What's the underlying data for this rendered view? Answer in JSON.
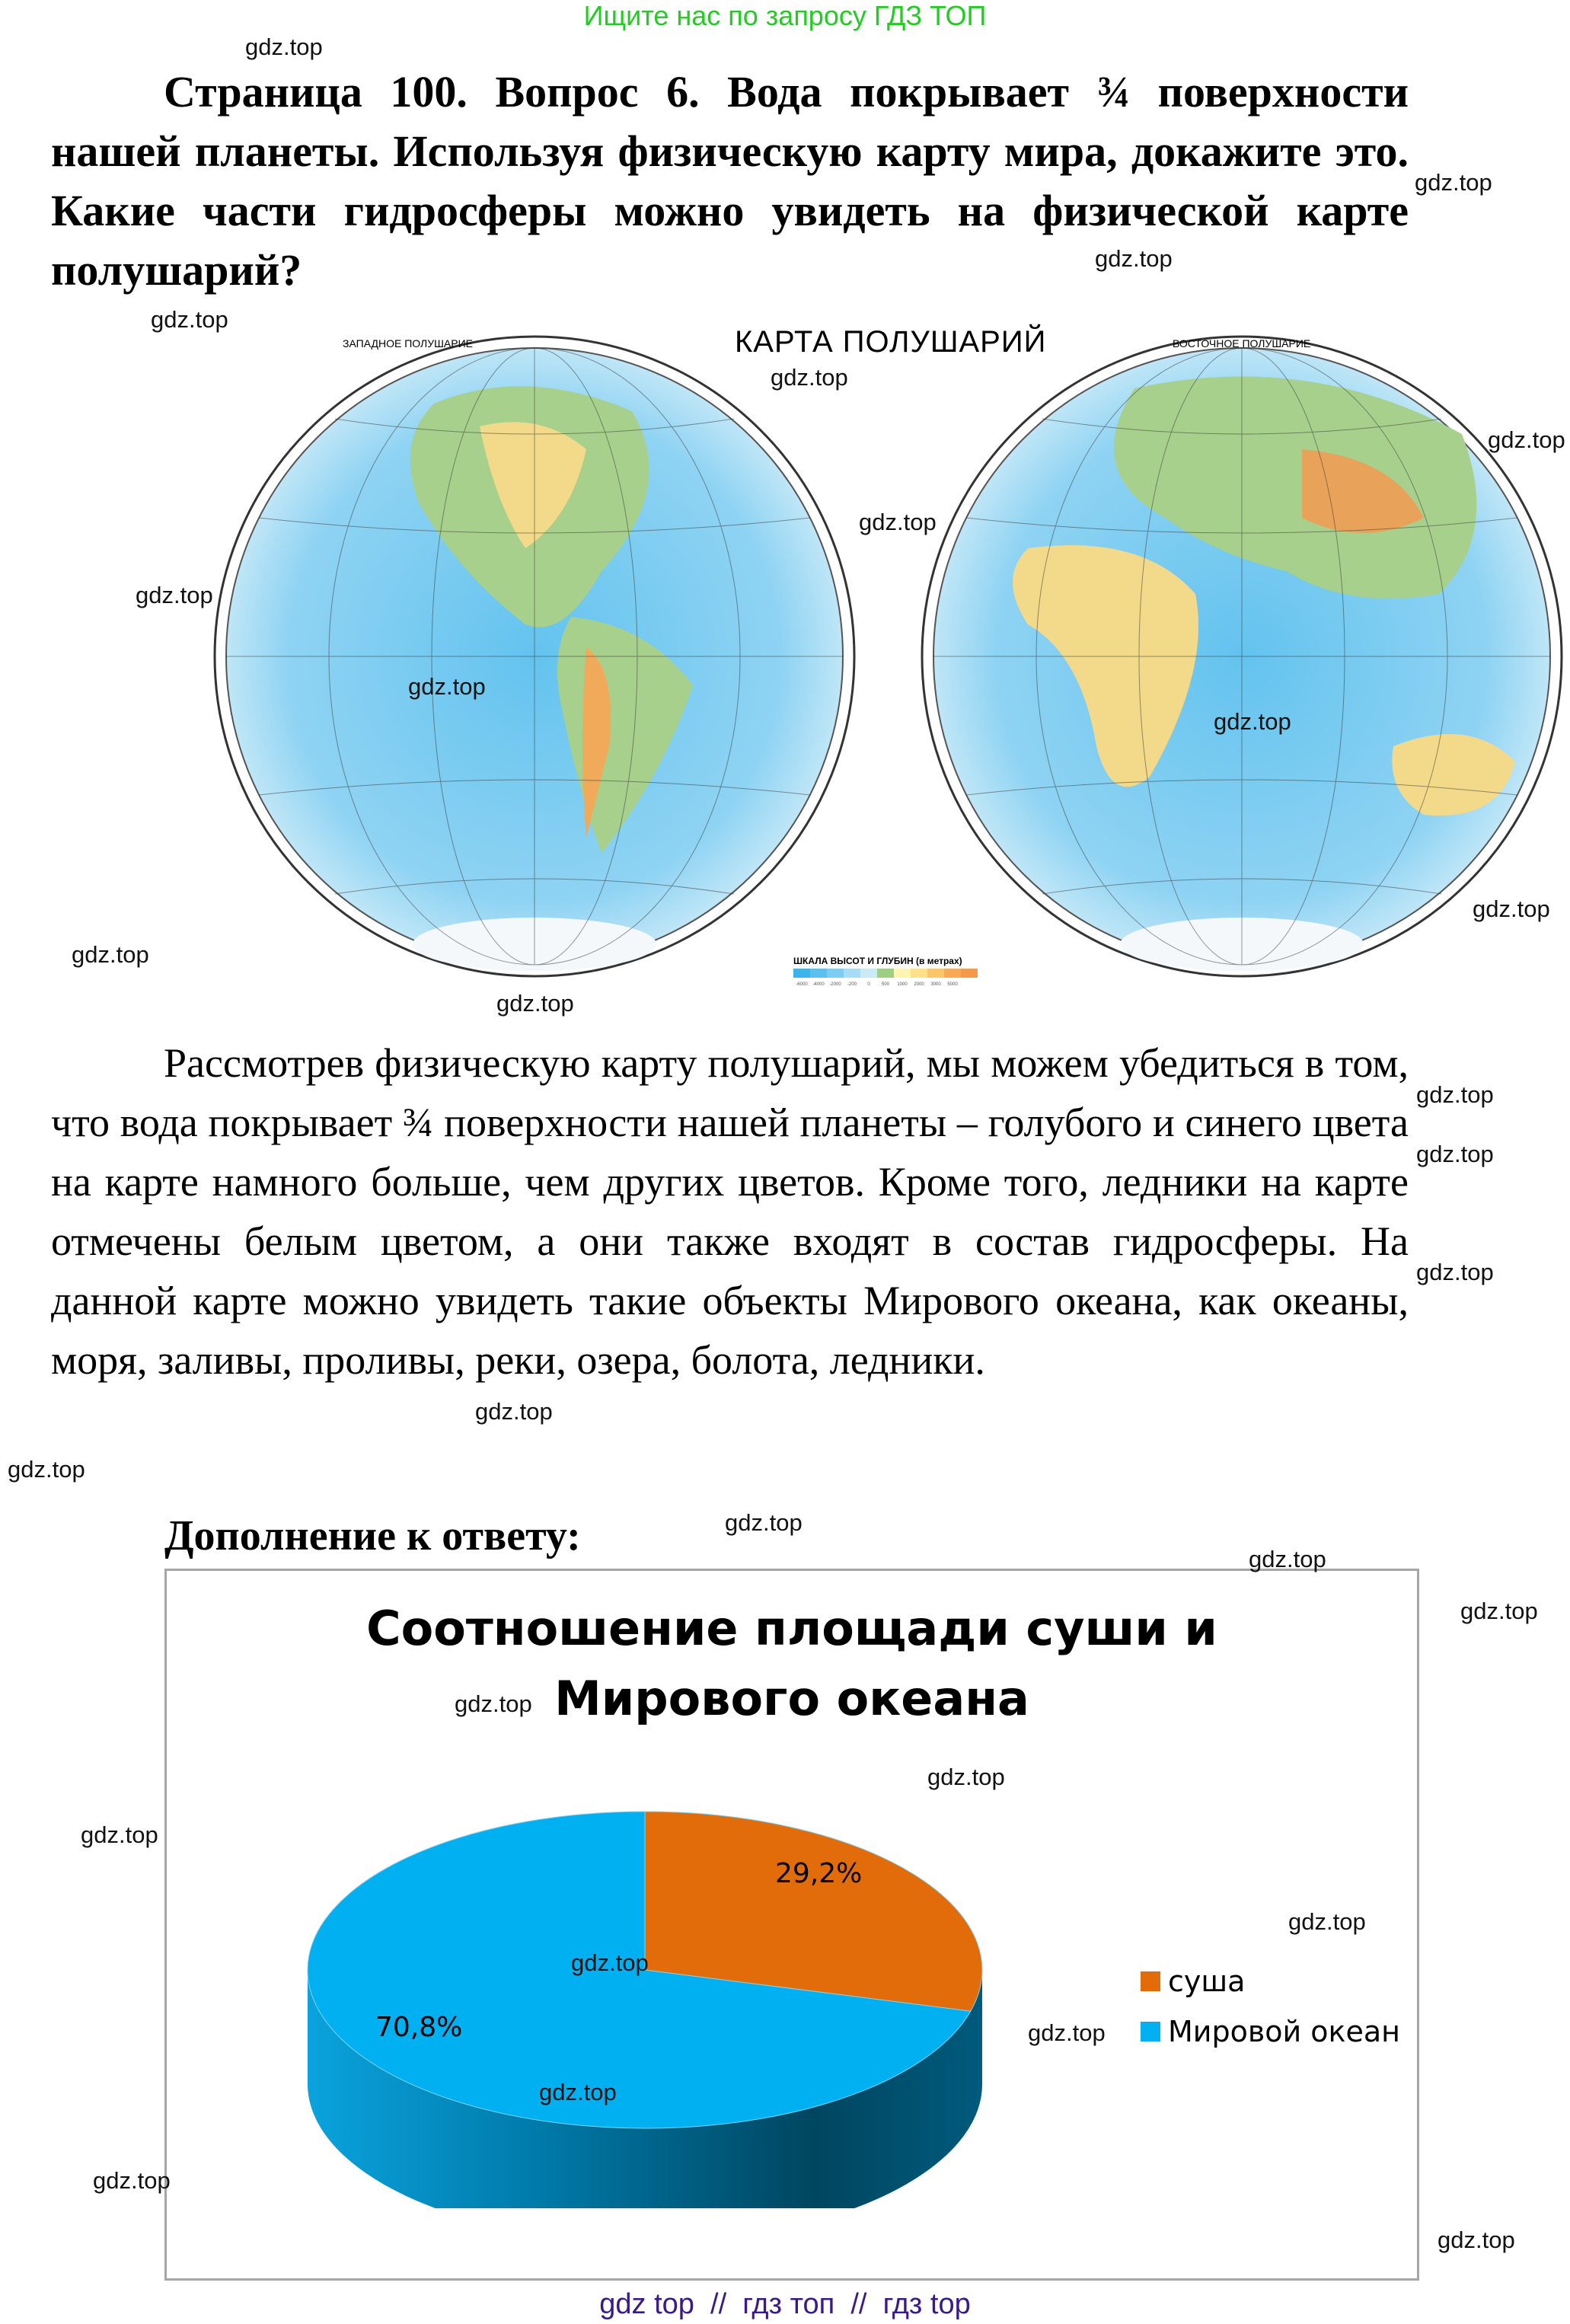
{
  "banner": "Ищите нас по запросу ГДЗ ТОП",
  "watermark": "gdz.top",
  "question": "Страница 100. Вопрос 6. Вода покрывает ¾ поверхности нашей планеты. Используя физическую карту мира, докажите это. Какие части гидросферы можно увидеть на физической карте полушарий?",
  "map": {
    "title": "КАРТА ПОЛУШАРИЙ",
    "west_label": "ЗАПАДНОЕ ПОЛУШАРИЕ",
    "east_label": "ВОСТОЧНОЕ ПОЛУШАРИЕ",
    "scale_title": "ШКАЛА ВЫСОТ И ГЛУБИН (в метрах)",
    "scale_ticks": [
      "-6000",
      "-4000",
      "-2000",
      "-200",
      "0",
      "500",
      "1000",
      "2000",
      "3000",
      "5000"
    ],
    "scale_colors": [
      "#3bb4ea",
      "#5cc0ef",
      "#7ccdf2",
      "#a6dcf6",
      "#cbeaf8",
      "#9ccf82",
      "#fdf5b0",
      "#fde08a",
      "#fbc56a",
      "#f8a955",
      "#f39a4a"
    ]
  },
  "answer": "Рассмотрев физическую карту полушарий, мы можем убедиться в том, что вода покрывает ¾ поверхности нашей планеты – голубого и синего цвета на карте намного больше, чем других цветов. Кроме того, ледники на карте отмечены белым цветом, а они также входят в состав гидросферы. На данной карте можно увидеть такие объекты Мирового океана, как океаны, моря, заливы, проливы, реки, озера, болота, ледники.",
  "extra_title": "Дополнение к ответу:",
  "chart_data": {
    "type": "pie",
    "title_line1": "Соотношение площади суши и",
    "title_line2": "Мирового океана",
    "categories": [
      "суша",
      "Мировой океан"
    ],
    "values": [
      29.2,
      70.8
    ],
    "data_labels": [
      "29,2%",
      "70,8%"
    ],
    "colors": [
      "#e36c0a",
      "#00b0f0"
    ],
    "legend_position": "right",
    "style": "3d"
  },
  "footer": "gdz top  //  гдз топ  //  гдз top"
}
